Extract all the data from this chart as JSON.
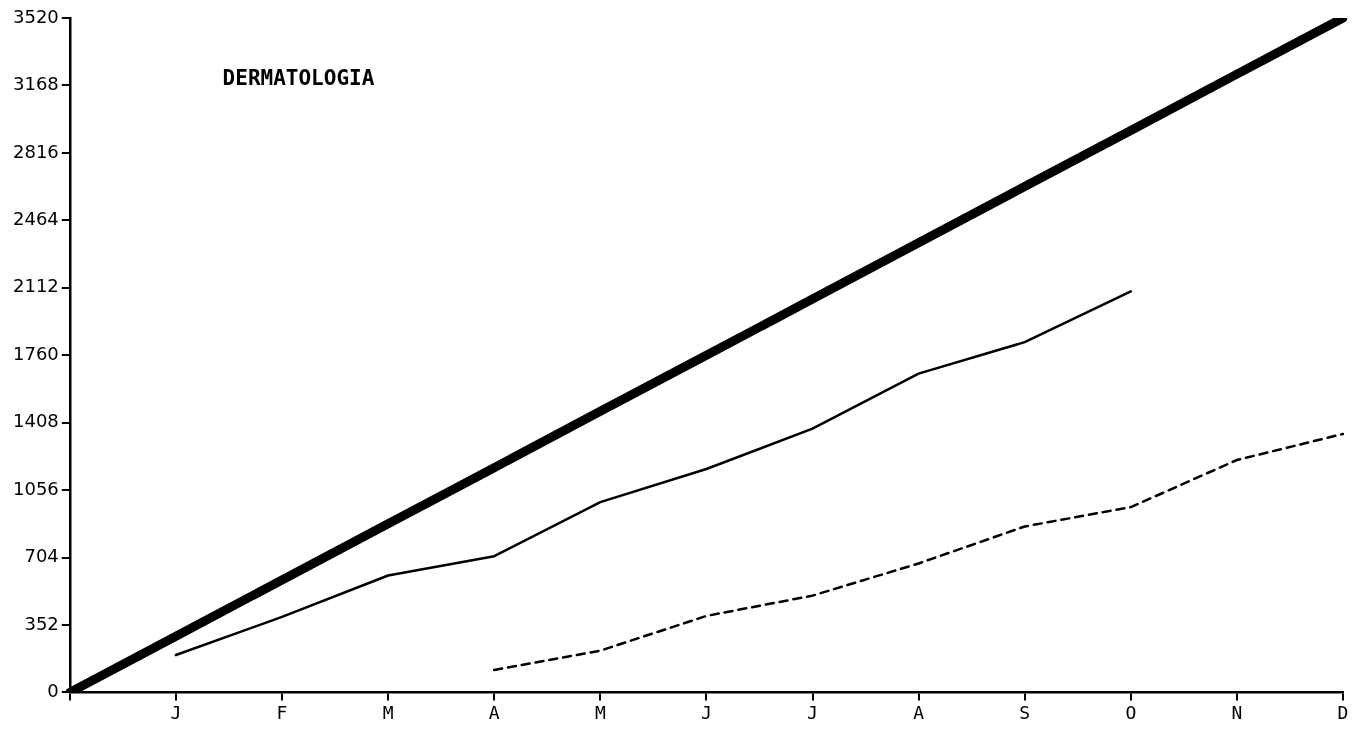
{
  "chart_data": {
    "type": "line",
    "title": "DERMATOLOGIA",
    "categories": [
      null,
      "J",
      "F",
      "M",
      "A",
      "M",
      "J",
      "J",
      "A",
      "S",
      "O",
      "N",
      "D"
    ],
    "series": [
      {
        "color": "#000000",
        "line_style": "solid",
        "values": [
          0,
          293,
          587,
          880,
          1173,
          1467,
          1760,
          2053,
          2347,
          2640,
          2933,
          3227,
          3520
        ]
      },
      {
        "color": "#000000",
        "line_style": "solid",
        "values": [
          null,
          195,
          394,
          610,
          711,
          993,
          1166,
          1377,
          1664,
          1828,
          2093,
          null,
          null
        ]
      },
      {
        "color": "#000000",
        "line_style": "dashed",
        "values": [
          null,
          null,
          null,
          null,
          117,
          218,
          399,
          505,
          673,
          866,
          967,
          1213,
          1349
        ]
      }
    ],
    "ylim": [
      0,
      3520
    ],
    "yticks": [
      0,
      352,
      704,
      1056,
      1408,
      1760,
      2112,
      2464,
      2816,
      3168,
      3520
    ],
    "grid": false,
    "legend": false,
    "marker": "none"
  }
}
